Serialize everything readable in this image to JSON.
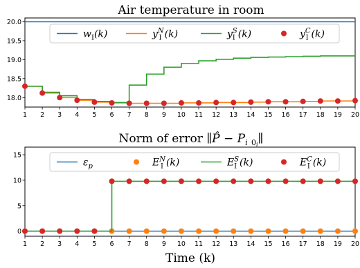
{
  "chart_data": [
    {
      "type": "line",
      "title": "Air temperature in room",
      "xlabel": "",
      "ylabel": "",
      "xlim": [
        1,
        20
      ],
      "ylim": [
        17.75,
        20.1
      ],
      "x": [
        1,
        2,
        3,
        4,
        5,
        6,
        7,
        8,
        9,
        10,
        11,
        12,
        13,
        14,
        15,
        16,
        17,
        18,
        19,
        20
      ],
      "xticks": [
        1,
        2,
        3,
        4,
        5,
        6,
        7,
        8,
        9,
        10,
        11,
        12,
        13,
        14,
        15,
        16,
        17,
        18,
        19,
        20
      ],
      "yticks": [
        18.0,
        18.5,
        19.0,
        19.5,
        20.0
      ],
      "ytick_labels": [
        "18.0",
        "18.5",
        "19.0",
        "19.5",
        "20.0"
      ],
      "legend_position": "top-center",
      "series": [
        {
          "name": "w_I(k)",
          "legend_main": "w",
          "legend_sub": "I",
          "legend_sup": "",
          "legend_arg": "(k)",
          "style": "line",
          "color": "#1f77b4",
          "values": [
            20,
            20,
            20,
            20,
            20,
            20,
            20,
            20,
            20,
            20,
            20,
            20,
            20,
            20,
            20,
            20,
            20,
            20,
            20,
            20
          ]
        },
        {
          "name": "y_I^N(k)",
          "legend_main": "y",
          "legend_sub": "I",
          "legend_sup": "N",
          "legend_arg": "(k)",
          "style": "step",
          "color": "#ff7f0e",
          "values": [
            18.3,
            18.12,
            18.0,
            17.93,
            17.88,
            17.86,
            17.85,
            17.85,
            17.85,
            17.86,
            17.86,
            17.87,
            17.87,
            17.88,
            17.89,
            17.89,
            17.9,
            17.91,
            17.91,
            17.92
          ]
        },
        {
          "name": "y_I^S(k)",
          "legend_main": "y",
          "legend_sub": "I",
          "legend_sup": "S",
          "legend_arg": "(k)",
          "style": "step",
          "color": "#2ca02c",
          "values": [
            18.3,
            18.14,
            18.05,
            17.95,
            17.9,
            17.87,
            18.33,
            18.62,
            18.8,
            18.9,
            18.97,
            19.01,
            19.04,
            19.06,
            19.07,
            19.08,
            19.09,
            19.1,
            19.1,
            19.11
          ]
        },
        {
          "name": "y_I^C(k)",
          "legend_main": "y",
          "legend_sub": "I",
          "legend_sup": "C",
          "legend_arg": "(k)",
          "style": "marker",
          "color": "#d62728",
          "values": [
            18.3,
            18.12,
            18.0,
            17.93,
            17.88,
            17.86,
            17.85,
            17.85,
            17.85,
            17.86,
            17.86,
            17.87,
            17.87,
            17.88,
            17.89,
            17.89,
            17.9,
            17.91,
            17.91,
            17.92
          ]
        }
      ]
    },
    {
      "type": "line",
      "title": "Norm of error",
      "title_formula": "∥P̂ − P",
      "title_sub1": "i",
      "title_sub2": "0",
      "title_sub3": "i",
      "title_end": "∥",
      "xlabel": "Time (k)",
      "ylabel": "",
      "xlim": [
        1,
        20
      ],
      "ylim": [
        -1,
        16.5
      ],
      "x": [
        1,
        2,
        3,
        4,
        5,
        6,
        7,
        8,
        9,
        10,
        11,
        12,
        13,
        14,
        15,
        16,
        17,
        18,
        19,
        20
      ],
      "xticks": [
        1,
        2,
        3,
        4,
        5,
        6,
        7,
        8,
        9,
        10,
        11,
        12,
        13,
        14,
        15,
        16,
        17,
        18,
        19,
        20
      ],
      "yticks": [
        0,
        5,
        10,
        15
      ],
      "ytick_labels": [
        "0",
        "5",
        "10",
        "15"
      ],
      "legend_position": "top-center",
      "series": [
        {
          "name": "ε_p",
          "legend_main": "ε",
          "legend_sub": "p",
          "legend_sup": "",
          "legend_arg": "",
          "style": "line",
          "color": "#1f77b4",
          "values": [
            0,
            0,
            0,
            0,
            0,
            0,
            0,
            0,
            0,
            0,
            0,
            0,
            0,
            0,
            0,
            0,
            0,
            0,
            0,
            0
          ]
        },
        {
          "name": "E_I^N(k)",
          "legend_main": "E",
          "legend_sub": "I",
          "legend_sup": "N",
          "legend_arg": "(k)",
          "style": "marker",
          "color": "#ff7f0e",
          "values": [
            0,
            0,
            0,
            0,
            0,
            0,
            0,
            0,
            0,
            0,
            0,
            0,
            0,
            0,
            0,
            0,
            0,
            0,
            0,
            0
          ]
        },
        {
          "name": "E_I^S(k)",
          "legend_main": "E",
          "legend_sub": "I",
          "legend_sup": "S",
          "legend_arg": "(k)",
          "style": "step",
          "color": "#2ca02c",
          "values": [
            0,
            0,
            0,
            0,
            0,
            9.8,
            9.8,
            9.8,
            9.8,
            9.8,
            9.8,
            9.8,
            9.8,
            9.8,
            9.8,
            9.8,
            9.8,
            9.8,
            9.8,
            9.8
          ]
        },
        {
          "name": "E_I^C(k)",
          "legend_main": "E",
          "legend_sub": "I",
          "legend_sup": "C",
          "legend_arg": "(k)",
          "style": "marker",
          "color": "#d62728",
          "values": [
            0,
            0,
            0,
            0,
            0,
            9.8,
            9.8,
            9.8,
            9.8,
            9.8,
            9.8,
            9.8,
            9.8,
            9.8,
            9.8,
            9.8,
            9.8,
            9.8,
            9.8,
            9.8
          ]
        }
      ]
    }
  ]
}
